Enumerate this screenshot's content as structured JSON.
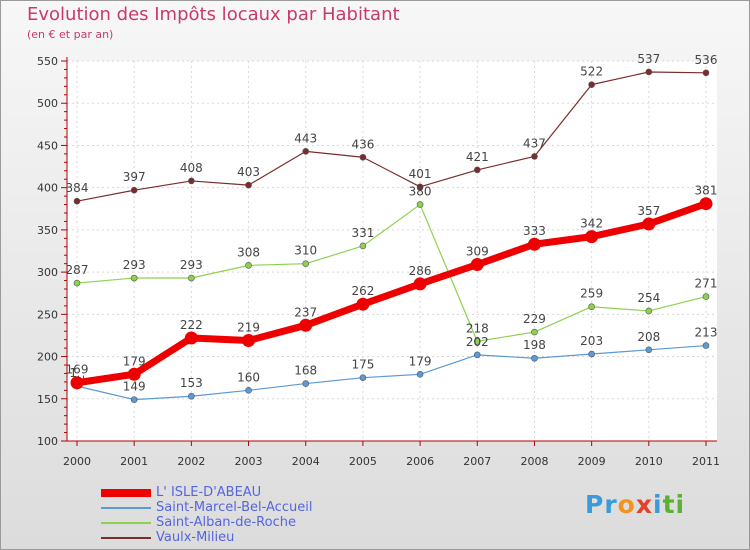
{
  "header": {
    "title": "Evolution des Impôts locaux par Habitant",
    "subtitle": "(en € et par an)"
  },
  "logo": {
    "parts": [
      "Pr",
      "o",
      "x",
      "i",
      "ti"
    ],
    "colors": [
      "#3a9bd8",
      "#f29321",
      "#e2412a",
      "#3a9bd8",
      "#5bb133"
    ]
  },
  "chart_data": {
    "type": "line",
    "title": "Evolution des Impôts locaux par Habitant",
    "subtitle": "(en € et par an)",
    "x": [
      "2000",
      "2001",
      "2002",
      "2003",
      "2004",
      "2005",
      "2006",
      "2007",
      "2008",
      "2009",
      "2010",
      "2011"
    ],
    "ylim": [
      100,
      550
    ],
    "yticks": [
      100,
      150,
      200,
      250,
      300,
      350,
      400,
      450,
      500,
      550
    ],
    "grid": true,
    "legend_position": "bottom-left",
    "series": [
      {
        "name": "Vaulx-Milieu",
        "color": "#7a2d2d",
        "values": [
          384,
          397,
          408,
          403,
          443,
          436,
          401,
          421,
          437,
          522,
          537,
          536
        ]
      },
      {
        "name": "Saint-Alban-de-Roche",
        "color": "#8ed14f",
        "values": [
          287,
          293,
          293,
          308,
          310,
          331,
          380,
          218,
          229,
          259,
          254,
          271
        ]
      },
      {
        "name": "Saint-Marcel-Bel-Accueil",
        "color": "#5a9ad6",
        "values": [
          165,
          149,
          153,
          160,
          168,
          175,
          179,
          202,
          198,
          203,
          208,
          213
        ]
      },
      {
        "name": "L' ISLE-D'ABEAU",
        "color": "#ee0000",
        "values": [
          169,
          179,
          222,
          219,
          237,
          262,
          286,
          309,
          333,
          342,
          357,
          381
        ]
      }
    ],
    "label_overrides": {
      "Saint-Marcel-Bel-Accueil": {
        "0": "1␣"
      }
    }
  }
}
